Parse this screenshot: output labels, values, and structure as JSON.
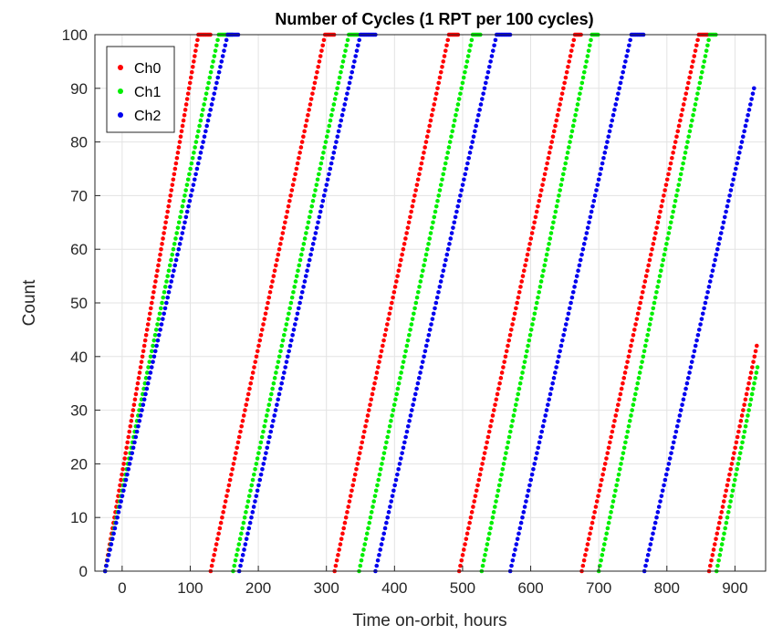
{
  "chart_data": {
    "type": "scatter",
    "title": "Number of Cycles (1 RPT per 100 cycles)",
    "xlabel": "Time on-orbit, hours",
    "ylabel": "Count",
    "xlim": [
      -40,
      945
    ],
    "ylim": [
      0,
      100
    ],
    "xticks": [
      0,
      100,
      200,
      300,
      400,
      500,
      600,
      700,
      800,
      900
    ],
    "yticks": [
      0,
      10,
      20,
      30,
      40,
      50,
      60,
      70,
      80,
      90,
      100
    ],
    "grid": true,
    "legend_position": "top-left",
    "series": [
      {
        "name": "Ch0",
        "color": "#ff0000",
        "segments": [
          {
            "x_start": -25,
            "x_end": 112,
            "y_start": 0,
            "y_end": 100,
            "hold_to_x": 130
          },
          {
            "x_start": 130,
            "x_end": 298,
            "y_start": 0,
            "y_end": 100,
            "hold_to_x": 312
          },
          {
            "x_start": 312,
            "x_end": 480,
            "y_start": 0,
            "y_end": 100,
            "hold_to_x": 495
          },
          {
            "x_start": 495,
            "x_end": 665,
            "y_start": 0,
            "y_end": 100,
            "hold_to_x": 675
          },
          {
            "x_start": 675,
            "x_end": 847,
            "y_start": 0,
            "y_end": 100,
            "hold_to_x": 862
          },
          {
            "x_start": 862,
            "x_end": 932,
            "y_start": 0,
            "y_end": 42
          }
        ]
      },
      {
        "name": "Ch1",
        "color": "#00ee00",
        "segments": [
          {
            "x_start": -25,
            "x_end": 142,
            "y_start": 0,
            "y_end": 100,
            "hold_to_x": 163
          },
          {
            "x_start": 163,
            "x_end": 333,
            "y_start": 0,
            "y_end": 100,
            "hold_to_x": 348
          },
          {
            "x_start": 348,
            "x_end": 515,
            "y_start": 0,
            "y_end": 100,
            "hold_to_x": 528
          },
          {
            "x_start": 528,
            "x_end": 690,
            "y_start": 0,
            "y_end": 100,
            "hold_to_x": 700
          },
          {
            "x_start": 700,
            "x_end": 863,
            "y_start": 0,
            "y_end": 100,
            "hold_to_x": 873
          },
          {
            "x_start": 873,
            "x_end": 933,
            "y_start": 0,
            "y_end": 38
          }
        ]
      },
      {
        "name": "Ch2",
        "color": "#0000ee",
        "segments": [
          {
            "x_start": -25,
            "x_end": 155,
            "y_start": 0,
            "y_end": 100,
            "hold_to_x": 172
          },
          {
            "x_start": 172,
            "x_end": 350,
            "y_start": 0,
            "y_end": 100,
            "hold_to_x": 372
          },
          {
            "x_start": 372,
            "x_end": 550,
            "y_start": 0,
            "y_end": 100,
            "hold_to_x": 570
          },
          {
            "x_start": 570,
            "x_end": 748,
            "y_start": 0,
            "y_end": 100,
            "hold_to_x": 767
          },
          {
            "x_start": 767,
            "x_end": 928,
            "y_start": 0,
            "y_end": 90
          }
        ]
      }
    ]
  }
}
